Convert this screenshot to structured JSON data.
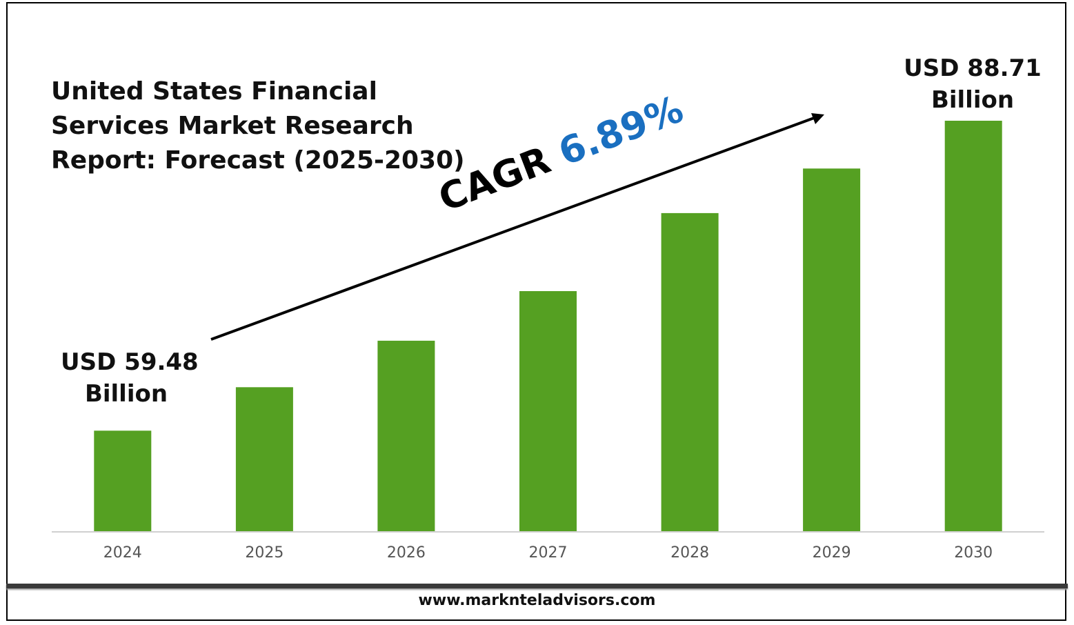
{
  "chart_data": {
    "type": "bar",
    "title_lines": [
      "United States Financial",
      "Services Market Research",
      "Report: Forecast (2025-2030)"
    ],
    "categories": [
      "2024",
      "2025",
      "2026",
      "2027",
      "2028",
      "2029",
      "2030"
    ],
    "values": [
      59.48,
      63.58,
      67.96,
      72.64,
      80.0,
      84.2,
      88.71
    ],
    "bar_color": "#55a022",
    "ylim": [
      50,
      90
    ],
    "annotations": {
      "first_label_line1": "USD 59.48",
      "first_label_line2": "Billion",
      "last_label_line1": "USD 88.71",
      "last_label_line2": "Billion",
      "cagr_prefix": "CAGR",
      "cagr_value": "6.89%",
      "cagr_color": "#1a6fc0"
    },
    "grid": false,
    "legend": "none"
  },
  "footer": {
    "url": "www.marknteladvisors.com"
  }
}
